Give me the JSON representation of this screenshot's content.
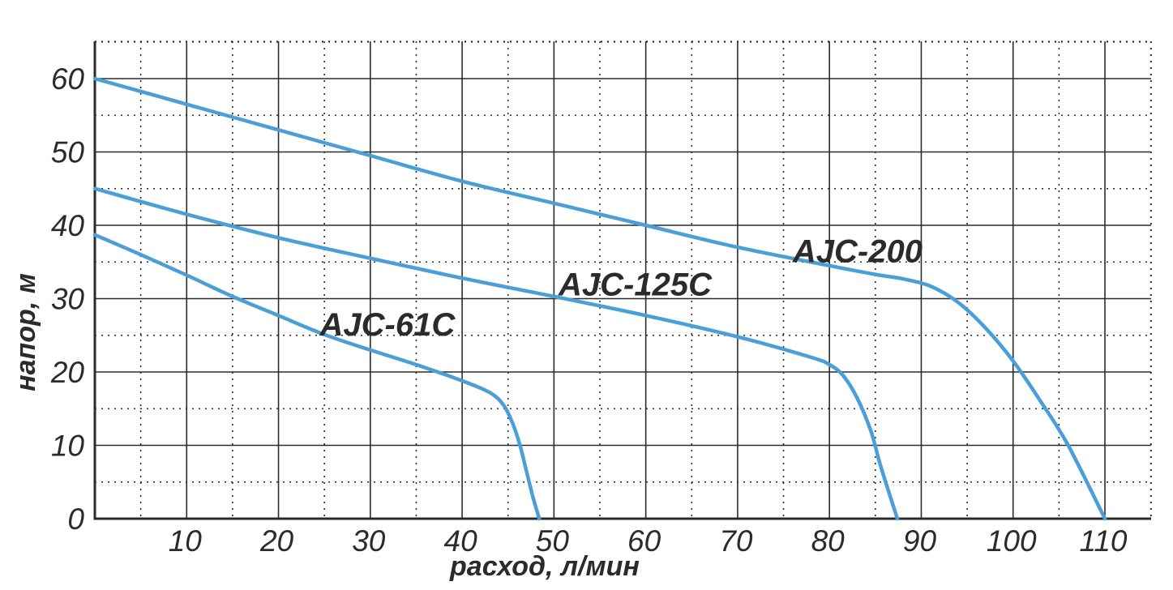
{
  "chart_data": {
    "type": "line",
    "title": "",
    "xlabel": "расход, л/мин",
    "ylabel": "напор, м",
    "xlim": [
      0,
      115
    ],
    "ylim": [
      0,
      65
    ],
    "x_ticks": [
      10,
      20,
      30,
      40,
      50,
      60,
      70,
      80,
      90,
      100,
      110
    ],
    "x_tick_labels": [
      "10",
      "20",
      "30",
      "40",
      "50",
      "60",
      "70",
      "80",
      "90",
      "100",
      "110"
    ],
    "y_ticks": [
      0,
      10,
      20,
      30,
      40,
      50,
      60
    ],
    "y_tick_labels": [
      "0",
      "10",
      "20",
      "30",
      "40",
      "50",
      "60"
    ],
    "grid": true,
    "line_color": "#4a9fd8",
    "series": [
      {
        "name": "AJC-200",
        "x": [
          0,
          10,
          20,
          30,
          40,
          50,
          60,
          70,
          80,
          85,
          88,
          91,
          94,
          97,
          100,
          103,
          106,
          110
        ],
        "y": [
          60,
          56.5,
          53,
          49.5,
          46,
          43,
          40,
          37,
          34.5,
          33.3,
          32.7,
          31.7,
          29.5,
          26,
          21.5,
          16,
          10,
          0
        ],
        "label_at": [
          76,
          36.5
        ]
      },
      {
        "name": "AJC-125C",
        "x": [
          0,
          10,
          20,
          30,
          40,
          50,
          60,
          70,
          78,
          80,
          81.5,
          83,
          84.5,
          85.5,
          86.5,
          87.4
        ],
        "y": [
          45,
          41.5,
          38.3,
          35.5,
          32.8,
          30.3,
          27.7,
          24.8,
          22,
          21,
          19.5,
          16.5,
          12,
          7.5,
          3.5,
          0
        ],
        "label_at": [
          50.5,
          32
        ]
      },
      {
        "name": "AJC-61C",
        "x": [
          0,
          5,
          10,
          15,
          20,
          25,
          30,
          35,
          40,
          43,
          44.5,
          45.5,
          46.3,
          47,
          47.7,
          48.4
        ],
        "y": [
          38.7,
          36,
          33.2,
          30.3,
          27.7,
          25.1,
          23,
          21,
          18.8,
          17.2,
          15.5,
          13,
          10,
          6.5,
          3,
          0
        ],
        "label_at": [
          24.5,
          26.5
        ]
      }
    ]
  }
}
